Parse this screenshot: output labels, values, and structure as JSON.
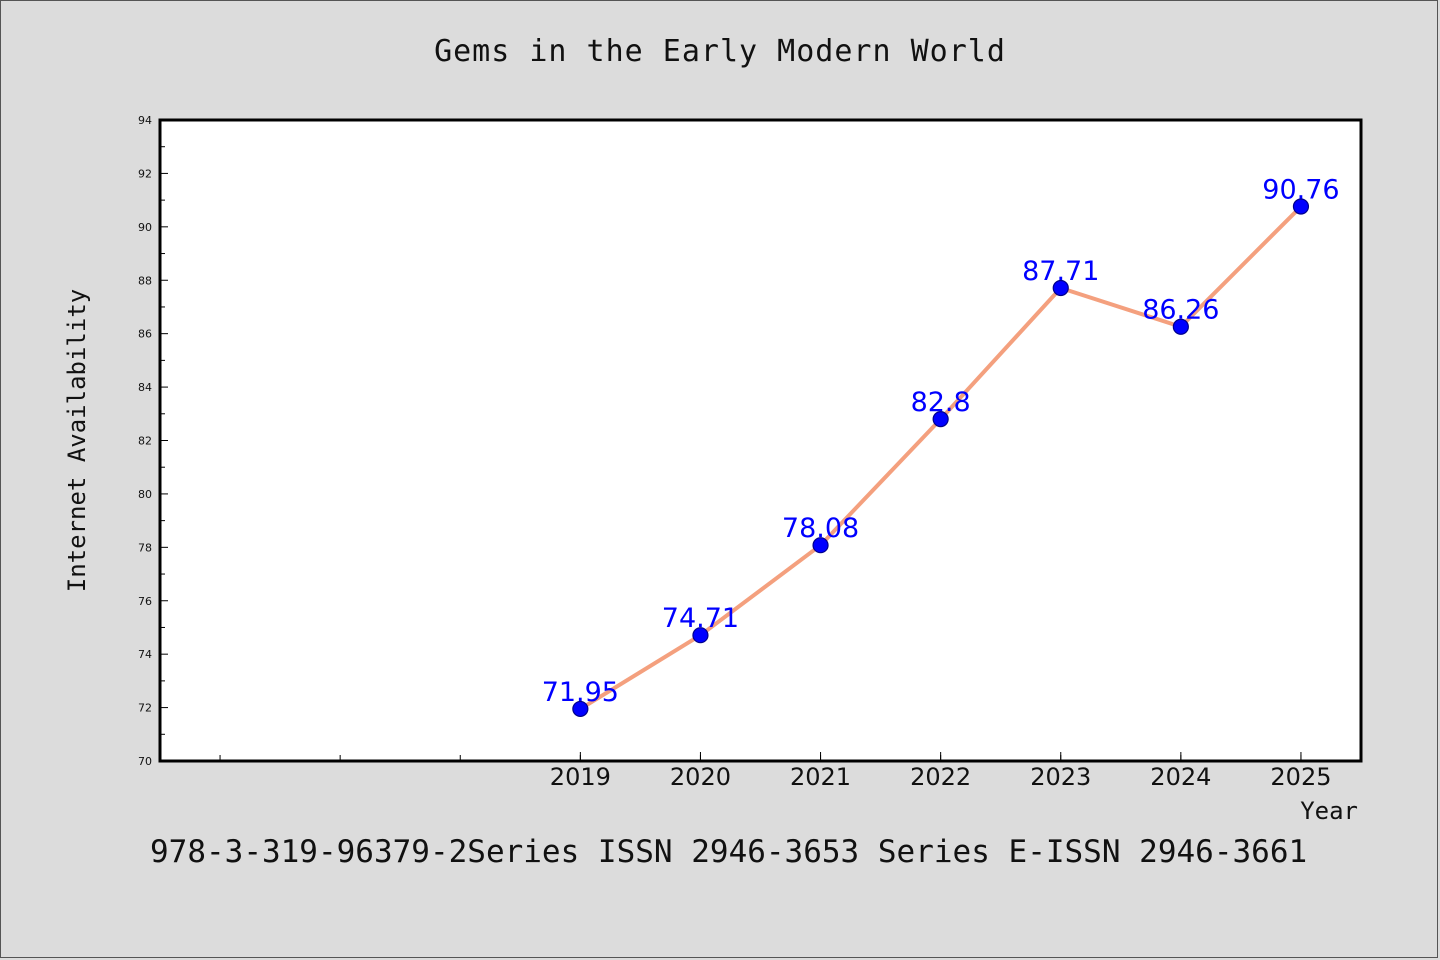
{
  "chart_data": {
    "type": "line",
    "title": "Gems in the Early Modern World",
    "xlabel": "Year",
    "ylabel": "Internet Availability",
    "x": [
      "2019",
      "2020",
      "2021",
      "2022",
      "2023",
      "2024",
      "2025"
    ],
    "series": [
      {
        "values": [
          71.95,
          74.71,
          78.08,
          82.8,
          87.71,
          86.26,
          90.76
        ],
        "labels": [
          "71.95",
          "74.71",
          "78.08",
          "82.8",
          "87.71",
          "86.26",
          "90.76"
        ]
      }
    ],
    "ylim": [
      70,
      94
    ],
    "xlim": [
      2015.5,
      2025.5
    ],
    "yticks": [
      "70",
      "72",
      "74",
      "76",
      "78",
      "80",
      "82",
      "84",
      "86",
      "88",
      "90",
      "92",
      "94"
    ],
    "grid": false,
    "line_color": "#f4a07e",
    "marker_color": "#0000ff",
    "label_color": "#0000ff"
  },
  "footer": {
    "text": "978-3-319-96379-2Series ISSN 2946-3653 Series E-ISSN 2946-3661"
  }
}
